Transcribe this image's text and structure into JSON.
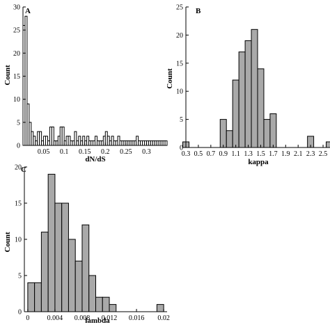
{
  "chart_data": [
    {
      "type": "bar",
      "panel": "A",
      "xlabel": "dN/dS",
      "ylabel": "Count",
      "xlim": [
        0,
        0.35
      ],
      "ylim": [
        0,
        30
      ],
      "bin_width": 0.005,
      "bar_fill": "#ffffff",
      "xticks": [
        0.05,
        0.1,
        0.15,
        0.2,
        0.25,
        0.3
      ],
      "xtick_labels": [
        "0.05",
        "0.1",
        "0.15",
        "0.2",
        "0.25",
        "0.3"
      ],
      "yticks": [
        0,
        5,
        10,
        15,
        20,
        25,
        30
      ],
      "ytick_labels": [
        "0",
        "5",
        "10",
        "15",
        "20",
        "25",
        "30"
      ],
      "x": [
        0.0025,
        0.0075,
        0.0125,
        0.0175,
        0.0225,
        0.0275,
        0.0325,
        0.0375,
        0.0425,
        0.0475,
        0.0525,
        0.0575,
        0.0625,
        0.0675,
        0.0725,
        0.0775,
        0.0825,
        0.0875,
        0.0925,
        0.0975,
        0.1025,
        0.1075,
        0.1125,
        0.1175,
        0.1225,
        0.1275,
        0.1325,
        0.1375,
        0.1425,
        0.1475,
        0.1525,
        0.1575,
        0.1625,
        0.1675,
        0.1725,
        0.1775,
        0.1825,
        0.1875,
        0.1925,
        0.1975,
        0.2025,
        0.2075,
        0.2125,
        0.2175,
        0.2225,
        0.2275,
        0.2325,
        0.2375,
        0.2425,
        0.2475,
        0.2525,
        0.2575,
        0.2625,
        0.2675,
        0.2725,
        0.2775,
        0.2825,
        0.2875,
        0.2925,
        0.2975,
        0.3025,
        0.3075,
        0.3125,
        0.3175,
        0.3225,
        0.3275,
        0.3325,
        0.3375,
        0.3425,
        0.3475
      ],
      "values": [
        26,
        28,
        9,
        5,
        3,
        2,
        1,
        3,
        3,
        1,
        2,
        2,
        1,
        4,
        4,
        1,
        1,
        2,
        4,
        4,
        1,
        2,
        2,
        1,
        1,
        3,
        1,
        2,
        1,
        2,
        1,
        2,
        1,
        1,
        1,
        2,
        1,
        1,
        1,
        2,
        3,
        2,
        1,
        2,
        1,
        1,
        2,
        1,
        1,
        1,
        1,
        1,
        1,
        1,
        1,
        2,
        1,
        1,
        1,
        1,
        1,
        1,
        1,
        1,
        1,
        1,
        1,
        1,
        1,
        1
      ]
    },
    {
      "type": "bar",
      "panel": "B",
      "xlabel": "kappa",
      "ylabel": "Count",
      "xlim": [
        0.3,
        2.6
      ],
      "ylim": [
        0,
        25
      ],
      "bin_width": 0.1,
      "bar_fill": "#a9a9a9",
      "xticks": [
        0.3,
        0.5,
        0.7,
        0.9,
        1.1,
        1.3,
        1.5,
        1.7,
        1.9,
        2.1,
        2.3,
        2.5
      ],
      "xtick_labels": [
        "0.3",
        "0.5",
        "0.7",
        "0.9",
        "1.1",
        "1.3",
        "1.5",
        "1.7",
        "1.9",
        "2.1",
        "2.3",
        "2.5"
      ],
      "yticks": [
        0,
        5,
        10,
        15,
        20,
        25
      ],
      "ytick_labels": [
        "0",
        "5",
        "10",
        "15",
        "20",
        "25"
      ],
      "x": [
        0.3,
        0.9,
        1.0,
        1.1,
        1.2,
        1.3,
        1.4,
        1.5,
        1.6,
        1.7,
        2.3,
        2.6
      ],
      "values": [
        1,
        5,
        3,
        12,
        17,
        19,
        21,
        14,
        5,
        6,
        2,
        1
      ]
    },
    {
      "type": "bar",
      "panel": "C",
      "xlabel": "lambda",
      "ylabel": "Count",
      "xlim": [
        -0.0005,
        0.0205
      ],
      "ylim": [
        0,
        20
      ],
      "bin_width": 0.001,
      "bar_fill": "#a9a9a9",
      "xticks": [
        0,
        0.004,
        0.008,
        0.012,
        0.016,
        0.02
      ],
      "xtick_labels": [
        "0",
        "0.004",
        "0.008",
        "0.012",
        "0.016",
        "0.02"
      ],
      "yticks": [
        0,
        5,
        10,
        15,
        20
      ],
      "ytick_labels": [
        "0",
        "5",
        "10",
        "15",
        "20"
      ],
      "x": [
        0.0005,
        0.0015,
        0.0025,
        0.0035,
        0.0045,
        0.0055,
        0.0065,
        0.0075,
        0.0085,
        0.0095,
        0.0105,
        0.0115,
        0.0125,
        0.0135,
        0.0145,
        0.0155,
        0.0165,
        0.0175,
        0.0185,
        0.0195
      ],
      "values": [
        4,
        4,
        11,
        19,
        15,
        15,
        10,
        7,
        12,
        5,
        2,
        2,
        1,
        0,
        0,
        0,
        0,
        0,
        0,
        1
      ]
    }
  ]
}
